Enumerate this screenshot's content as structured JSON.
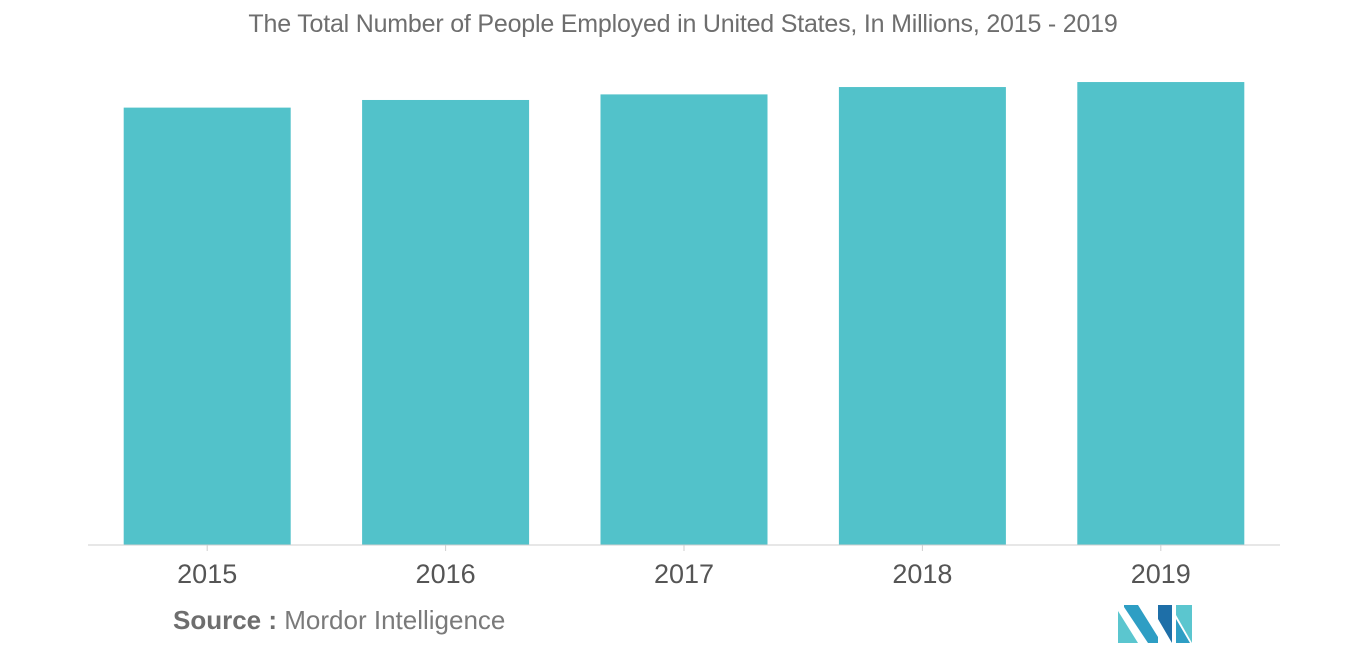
{
  "chart_data": {
    "type": "bar",
    "title": "The Total Number of People Employed in United States, In Millions, 2015 - 2019",
    "categories": [
      "2015",
      "2016",
      "2017",
      "2018",
      "2019"
    ],
    "values": [
      148.8,
      151.4,
      153.3,
      155.8,
      157.5
    ],
    "ylim": [
      0,
      165
    ],
    "xlabel": "",
    "ylabel": "",
    "grid": false,
    "legend": "none",
    "bar_color": "#52c2ca"
  },
  "source": {
    "label": "Source :",
    "text": "Mordor Intelligence"
  },
  "logo": {
    "icon": "mordor-intelligence-logo-icon",
    "colors": [
      "#2e9ec4",
      "#5bc6cf",
      "#1e6fa8"
    ]
  }
}
